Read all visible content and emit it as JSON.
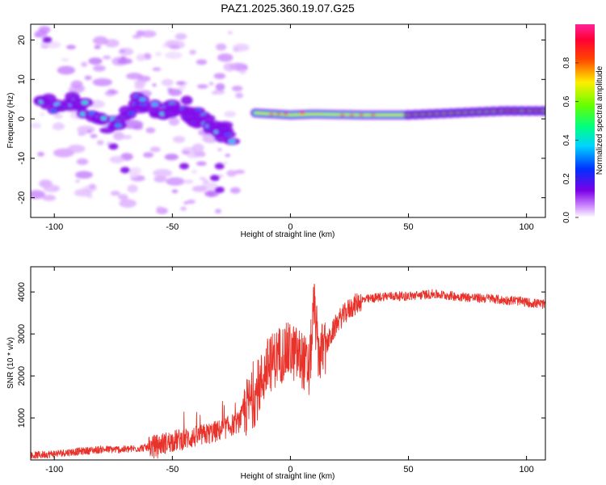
{
  "title": "PAZ1.2025.360.19.07.G25",
  "chart_data": [
    {
      "type": "heatmap",
      "xlabel": "Height of straight line (km)",
      "ylabel": "Frequency (Hz)",
      "xlim": [
        -110,
        108
      ],
      "ylim": [
        -25,
        24
      ],
      "xticks": [
        -100,
        -50,
        0,
        50,
        100
      ],
      "yticks": [
        -20,
        -10,
        0,
        10,
        20
      ],
      "colorbar": {
        "label": "Normalized spectral amplitude",
        "range": [
          0,
          1
        ],
        "ticks": [
          "0.0",
          "0.2",
          "0.4",
          "0.6",
          "0.8"
        ],
        "colormap": "rainbow (white-purple-blue-cyan-green-yellow-red-magenta)"
      },
      "ridge": {
        "description": "coherent dominant-frequency ridge near 1-2 Hz above about -15 km; scattered weak blobs below",
        "points": [
          [
            -15,
            1.5
          ],
          [
            0,
            1.0
          ],
          [
            10,
            1.2
          ],
          [
            30,
            1.0
          ],
          [
            50,
            1.0
          ],
          [
            70,
            1.5
          ],
          [
            90,
            2.0
          ],
          [
            108,
            2.0
          ]
        ]
      },
      "lower_features": {
        "description": "patchy descending features between -105 and -20 km",
        "points": [
          [
            -105,
            4
          ],
          [
            -95,
            4
          ],
          [
            -85,
            2
          ],
          [
            -75,
            -2
          ],
          [
            -65,
            4
          ],
          [
            -55,
            2
          ],
          [
            -45,
            3
          ],
          [
            -38,
            0
          ],
          [
            -30,
            -3
          ],
          [
            -25,
            -4
          ]
        ]
      }
    },
    {
      "type": "line",
      "xlabel": "Height of straight line (km)",
      "ylabel": "SNR (10 * v/v)",
      "xlim": [
        -110,
        108
      ],
      "ylim": [
        0,
        4600
      ],
      "xticks": [
        -100,
        -50,
        0,
        50,
        100
      ],
      "yticks": [
        1000,
        2000,
        3000,
        4000
      ],
      "color": "#e8322a",
      "series": [
        {
          "name": "SNR",
          "x": [
            -110,
            -100,
            -90,
            -80,
            -70,
            -60,
            -50,
            -40,
            -30,
            -22,
            -18,
            -15,
            -10,
            -5,
            0,
            5,
            8,
            10,
            12,
            15,
            20,
            25,
            30,
            40,
            50,
            60,
            70,
            80,
            85,
            90,
            95,
            100,
            108
          ],
          "y": [
            100,
            150,
            200,
            250,
            250,
            300,
            450,
            550,
            700,
            900,
            1300,
            1500,
            2200,
            2500,
            2600,
            2400,
            2100,
            3700,
            2500,
            2700,
            3300,
            3600,
            3800,
            3900,
            3900,
            3950,
            3900,
            3850,
            3850,
            3800,
            3800,
            3750,
            3700
          ]
        }
      ]
    }
  ]
}
